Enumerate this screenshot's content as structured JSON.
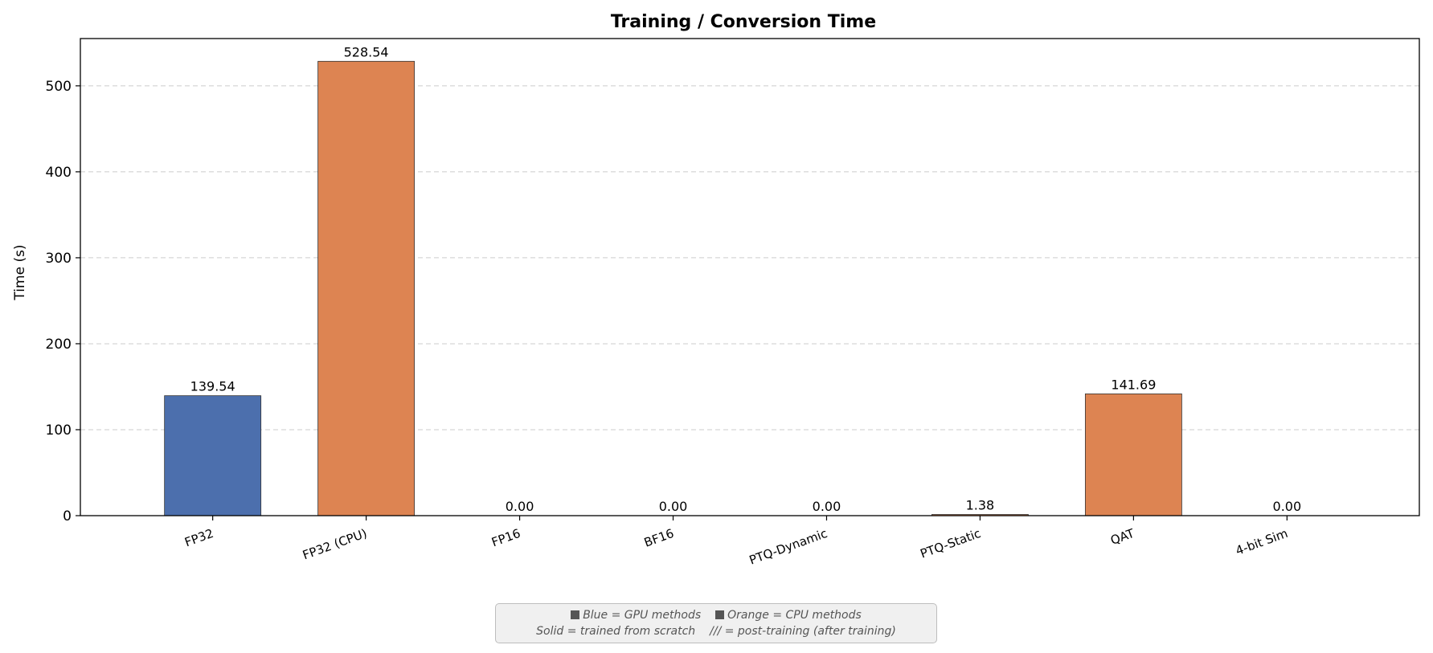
{
  "chart_data": {
    "type": "bar",
    "title": "Training / Conversion Time",
    "xlabel": "",
    "ylabel": "Time (s)",
    "ylim": [
      0,
      555
    ],
    "yticks": [
      0,
      100,
      200,
      300,
      400,
      500
    ],
    "grid": "y-dashed",
    "categories": [
      "FP32",
      "FP32 (CPU)",
      "FP16",
      "BF16",
      "PTQ-Dynamic",
      "PTQ-Static",
      "QAT",
      "4-bit Sim"
    ],
    "values": [
      139.54,
      528.54,
      0.0,
      0.0,
      0.0,
      1.38,
      141.69,
      0.0
    ],
    "value_labels": [
      "139.54",
      "528.54",
      "0.00",
      "0.00",
      "0.00",
      "1.38",
      "141.69",
      "0.00"
    ],
    "bar_colors": [
      "#4c6fad",
      "#dd8452",
      "#dd8452",
      "#dd8452",
      "#dd8452",
      "#dd8452",
      "#dd8452",
      "#dd8452"
    ],
    "colors": {
      "gpu": "#4c6fad",
      "cpu": "#dd8452"
    }
  },
  "note": {
    "line1_part1": "Blue = GPU methods",
    "line1_part2": "Orange = CPU methods",
    "line2_part1": "Solid = trained from scratch",
    "line2_part2": "/// = post-training (after training)"
  }
}
